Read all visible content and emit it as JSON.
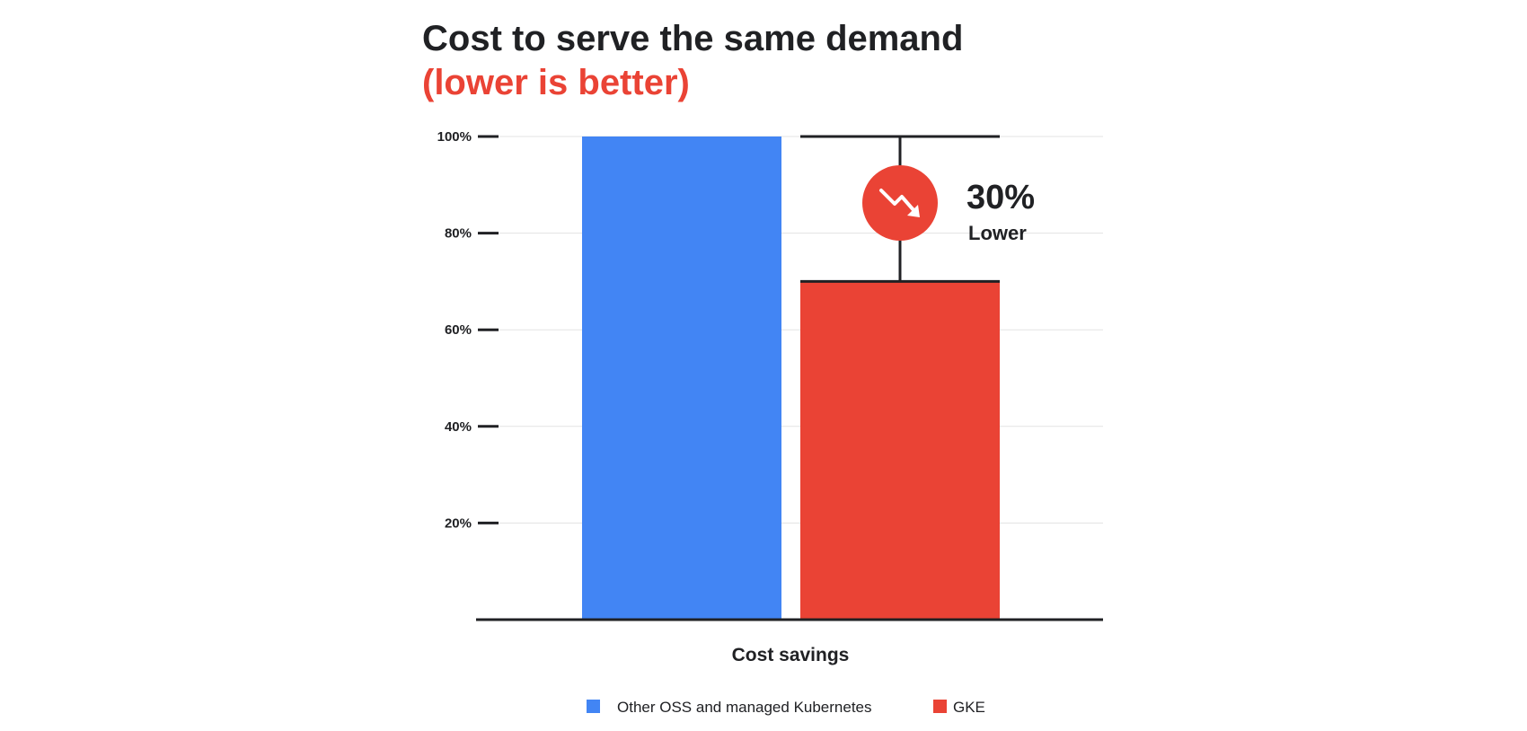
{
  "chart_data": {
    "type": "bar",
    "title": "Cost to serve the same demand",
    "subtitle": "(lower is better)",
    "xlabel": "Cost savings",
    "ylabel": "",
    "ylim": [
      0,
      100
    ],
    "yticks": [
      {
        "value": 20,
        "label": "20%"
      },
      {
        "value": 40,
        "label": "40%"
      },
      {
        "value": 60,
        "label": "60%"
      },
      {
        "value": 80,
        "label": "80%"
      },
      {
        "value": 100,
        "label": "100%"
      }
    ],
    "grid": true,
    "legend_position": "bottom",
    "series": [
      {
        "name": "Other OSS and managed Kubernetes",
        "values": [
          100
        ],
        "color": "#4285f4"
      },
      {
        "name": "GKE",
        "values": [
          70
        ],
        "color": "#ea4335"
      }
    ],
    "annotation": {
      "value": "30%",
      "label": "Lower",
      "icon": "trend-down-icon",
      "color": "#ea4335"
    }
  }
}
